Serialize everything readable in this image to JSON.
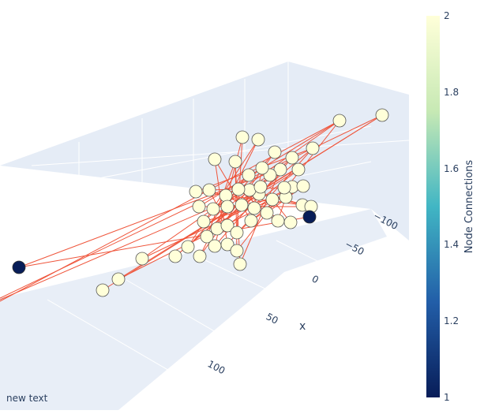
{
  "annotation": "new text",
  "chart_data": {
    "type": "scatter",
    "title": "",
    "x_axis": {
      "title": "x",
      "ticks": [
        "−100",
        "−50",
        "0",
        "50",
        "100"
      ]
    },
    "colorbar": {
      "title": "Node Connections",
      "range": [
        1,
        2
      ],
      "ticks": [
        "2",
        "1.8",
        "1.6",
        "1.4",
        "1.2",
        "1"
      ],
      "colorscale": [
        "#ffffd9",
        "#c7e9b4",
        "#41b6c4",
        "#225ea8",
        "#081d58"
      ]
    },
    "edge_color": "#ef553b",
    "grid": true,
    "legend": "none"
  }
}
